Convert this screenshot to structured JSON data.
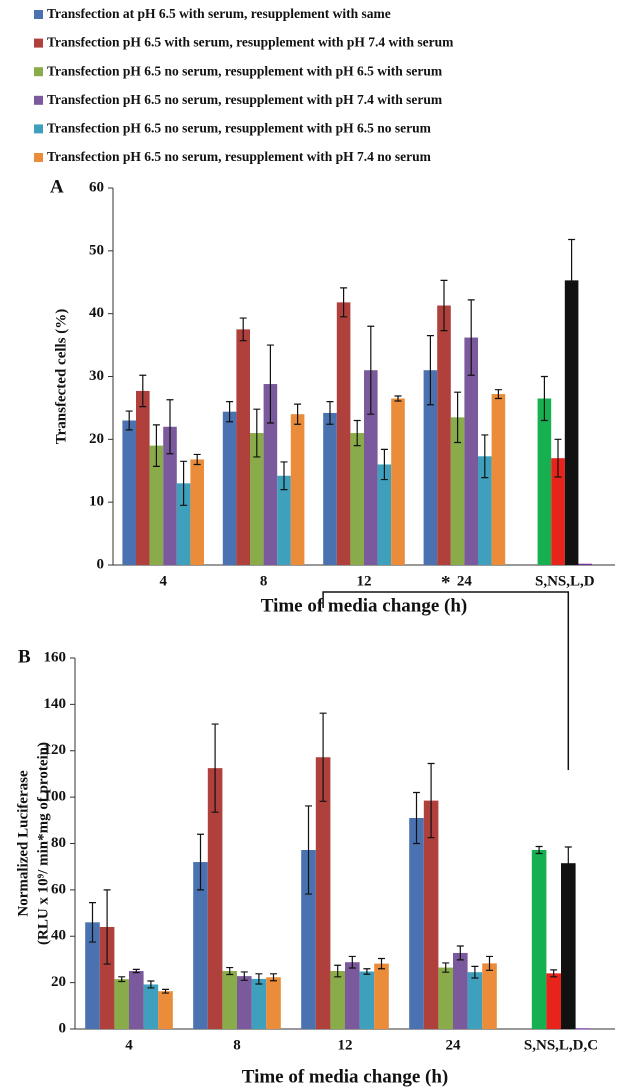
{
  "chart_data": [
    {
      "type": "bar",
      "panel": "A",
      "xlabel": "Time of media change (h)",
      "ylabel": [
        "Transfected cells (%)"
      ],
      "categories": [
        "4",
        "8",
        "12",
        "24",
        "S,NS,L,D"
      ],
      "ylim": [
        0,
        60
      ],
      "yticks": [
        0,
        10,
        20,
        30,
        40,
        50,
        60
      ],
      "series": [
        {
          "name": "Transfection at pH 6.5 with serum, resupplement with same",
          "color": "#4a72b0",
          "values": [
            23,
            24.4,
            24.2,
            31,
            null
          ],
          "errors": [
            1.5,
            1.6,
            1.8,
            5.5,
            null
          ]
        },
        {
          "name": "Transfection pH 6.5 with serum, resupplement with pH 7.4 with serum",
          "color": "#b0403c",
          "values": [
            27.7,
            37.5,
            41.8,
            41.3,
            null
          ],
          "errors": [
            2.5,
            1.8,
            2.3,
            4,
            null
          ]
        },
        {
          "name": "Transfection pH 6.5 no serum, resupplement with pH 6.5 with serum",
          "color": "#8aab4a",
          "values": [
            19,
            21,
            21,
            23.5,
            null
          ],
          "errors": [
            3.3,
            3.8,
            2,
            4,
            null
          ]
        },
        {
          "name": "Transfection pH 6.5 no serum, resupplement with pH 7.4 with serum",
          "color": "#7a5a9c",
          "values": [
            22,
            28.8,
            31,
            36.2,
            null
          ],
          "errors": [
            4.3,
            6.2,
            7,
            6,
            null
          ]
        },
        {
          "name": "Transfection pH 6.5 no serum, resupplement with pH 6.5 no serum",
          "color": "#3ea0bc",
          "values": [
            13,
            14.2,
            16,
            17.3,
            null
          ],
          "errors": [
            3.5,
            2.2,
            2.4,
            3.4,
            null
          ]
        },
        {
          "name": "Transfection pH 6.5 no serum, resupplement with pH 7.4 no serum",
          "color": "#ea8c3a",
          "values": [
            16.8,
            24,
            26.5,
            27.2,
            null
          ],
          "errors": [
            0.8,
            1.6,
            0.4,
            0.7,
            null
          ]
        },
        {
          "color": "#17b050",
          "values": [
            null,
            null,
            null,
            null,
            26.5
          ],
          "errors": [
            null,
            null,
            null,
            null,
            3.5
          ]
        },
        {
          "color": "#e8231c",
          "values": [
            null,
            null,
            null,
            null,
            17
          ],
          "errors": [
            null,
            null,
            null,
            null,
            3
          ]
        },
        {
          "color": "#111111",
          "values": [
            null,
            null,
            null,
            null,
            45.3
          ],
          "errors": [
            null,
            null,
            null,
            null,
            6.5
          ]
        },
        {
          "color": "#7030a0",
          "values": [
            null,
            null,
            null,
            null,
            0.2
          ],
          "errors": [
            null,
            null,
            null,
            null,
            null
          ]
        }
      ]
    },
    {
      "type": "bar",
      "panel": "B",
      "xlabel": "Time of media change (h)",
      "ylabel": [
        "Normalized Luciferase",
        "(RLU x 10⁹/ min*mg of protein)"
      ],
      "annotation": "*",
      "categories": [
        "4",
        "8",
        "12",
        "24",
        "S,NS,L,D,C"
      ],
      "ylim": [
        0,
        160
      ],
      "yticks": [
        0,
        20,
        40,
        60,
        80,
        100,
        120,
        140,
        160
      ],
      "series": [
        {
          "color": "#4a72b0",
          "values": [
            46,
            72,
            77.2,
            91,
            null
          ],
          "errors": [
            8.5,
            12,
            19,
            11,
            null
          ]
        },
        {
          "color": "#b0403c",
          "values": [
            44,
            112.5,
            117.2,
            98.5,
            null
          ],
          "errors": [
            16,
            19,
            19,
            16,
            null
          ]
        },
        {
          "color": "#8aab4a",
          "values": [
            21.5,
            25,
            25,
            26.5,
            null
          ],
          "errors": [
            1,
            1.5,
            2.5,
            2,
            null
          ]
        },
        {
          "color": "#7a5a9c",
          "values": [
            25,
            22.8,
            28.8,
            32.8,
            null
          ],
          "errors": [
            0.7,
            1.8,
            2.5,
            3,
            null
          ]
        },
        {
          "color": "#3ea0bc",
          "values": [
            19.2,
            21.6,
            24.8,
            24.5,
            null
          ],
          "errors": [
            1.5,
            2.2,
            1.2,
            2.5,
            null
          ]
        },
        {
          "color": "#ea8c3a",
          "values": [
            16.3,
            22.3,
            28.2,
            28.3,
            null
          ],
          "errors": [
            0.8,
            1.5,
            2.2,
            3,
            null
          ]
        },
        {
          "color": "#17b050",
          "values": [
            null,
            null,
            null,
            null,
            77.2
          ],
          "errors": [
            null,
            null,
            null,
            null,
            1.5
          ]
        },
        {
          "color": "#e8231c",
          "values": [
            null,
            null,
            null,
            null,
            24
          ],
          "errors": [
            null,
            null,
            null,
            null,
            1.5
          ]
        },
        {
          "color": "#111111",
          "values": [
            null,
            null,
            null,
            null,
            71.5
          ],
          "errors": [
            null,
            null,
            null,
            null,
            7
          ]
        },
        {
          "color": "#7030a0",
          "values": [
            null,
            null,
            null,
            null,
            0.3
          ],
          "errors": [
            null,
            null,
            null,
            null,
            null
          ]
        }
      ]
    }
  ]
}
